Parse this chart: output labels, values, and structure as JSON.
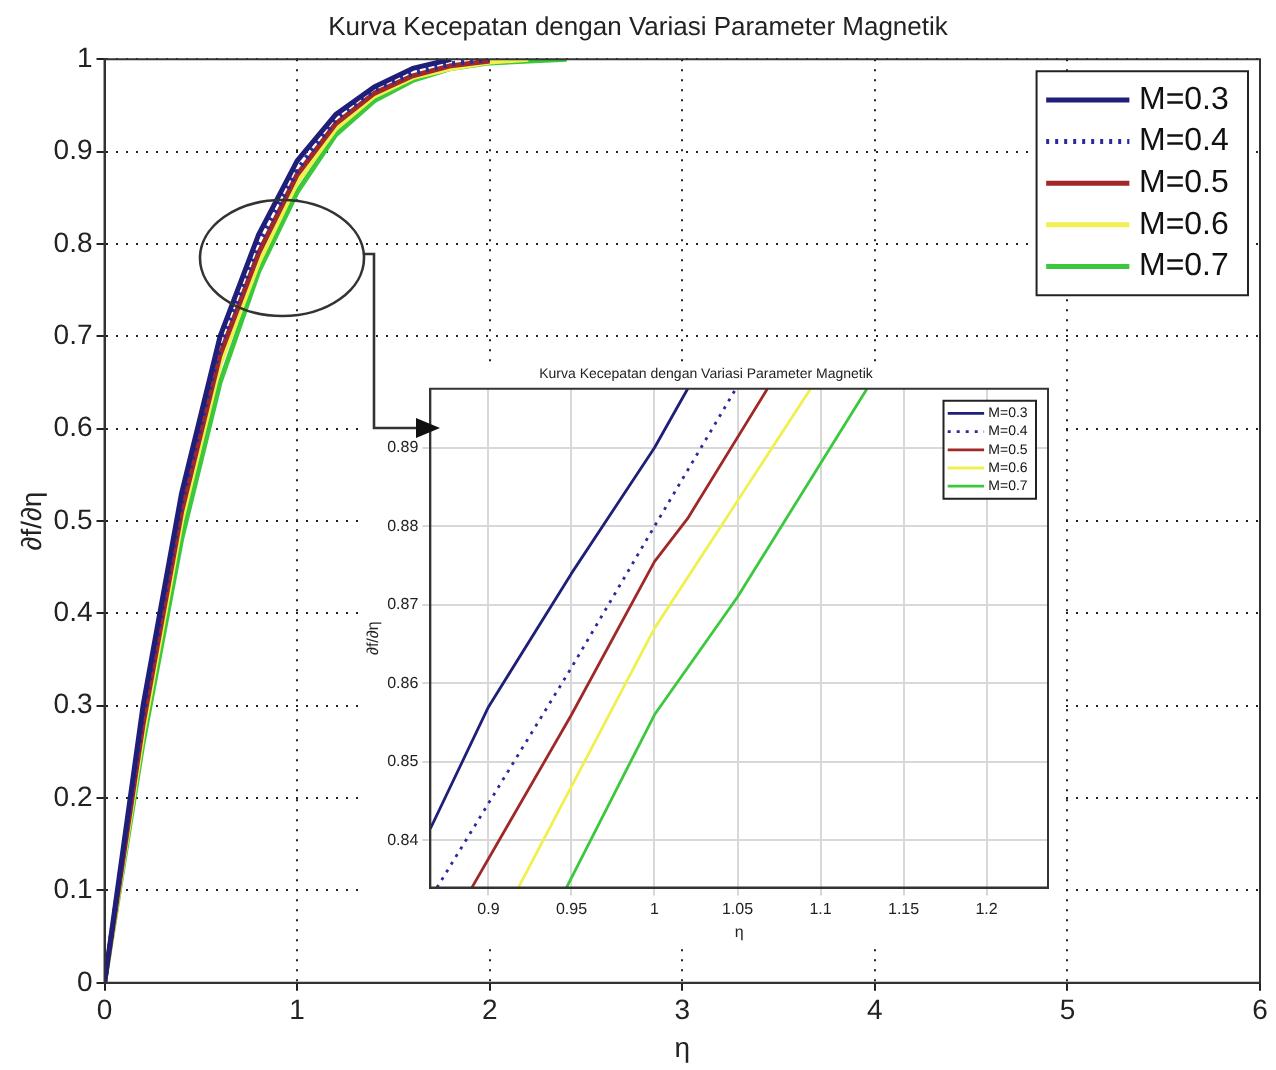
{
  "chart_data": [
    {
      "type": "line",
      "title": "Kurva Kecepatan dengan Variasi Parameter Magnetik",
      "xlabel": "η",
      "ylabel": "∂f/∂η",
      "xlim": [
        0,
        6
      ],
      "ylim": [
        0,
        1
      ],
      "xticks": [
        0,
        1,
        2,
        3,
        4,
        5,
        6
      ],
      "yticks": [
        0,
        0.1,
        0.2,
        0.3,
        0.4,
        0.5,
        0.6,
        0.7,
        0.8,
        0.9,
        1
      ],
      "grid": true,
      "legend": "top right",
      "marker": "none",
      "line_style": "solid",
      "series": [
        {
          "name": "M=0.3",
          "color": "#1f1f7a",
          "x": [
            0,
            0.2,
            0.4,
            0.6,
            0.8,
            1.0,
            1.2,
            1.4,
            1.6,
            1.8
          ],
          "values": [
            0,
            0.3,
            0.53,
            0.7,
            0.81,
            0.89,
            0.94,
            0.97,
            0.99,
            1
          ]
        },
        {
          "name": "M=0.4",
          "color": "#2a2a9a",
          "line_style": "dotted",
          "x": [
            0,
            0.2,
            0.4,
            0.6,
            0.8,
            1.0,
            1.2,
            1.4,
            1.6,
            1.8,
            2.0
          ],
          "values": [
            0,
            0.29,
            0.52,
            0.69,
            0.8,
            0.88,
            0.935,
            0.967,
            0.985,
            0.995,
            1
          ]
        },
        {
          "name": "M=0.5",
          "color": "#a02828",
          "x": [
            0,
            0.2,
            0.4,
            0.6,
            0.8,
            1.0,
            1.2,
            1.4,
            1.6,
            1.8,
            2.0
          ],
          "values": [
            0,
            0.28,
            0.51,
            0.68,
            0.79,
            0.875,
            0.93,
            0.963,
            0.982,
            0.993,
            0.998
          ]
        },
        {
          "name": "M=0.6",
          "color": "#f0f050",
          "x": [
            0,
            0.2,
            0.4,
            0.6,
            0.8,
            1.0,
            1.2,
            1.4,
            1.6,
            1.8,
            2.0,
            2.2
          ],
          "values": [
            0,
            0.27,
            0.5,
            0.67,
            0.78,
            0.867,
            0.925,
            0.96,
            0.98,
            0.99,
            0.997,
            1
          ]
        },
        {
          "name": "M=0.7",
          "color": "#3cc83c",
          "x": [
            0,
            0.2,
            0.4,
            0.6,
            0.8,
            1.0,
            1.2,
            1.4,
            1.6,
            1.8,
            2.0,
            2.4
          ],
          "values": [
            0,
            0.26,
            0.48,
            0.65,
            0.77,
            0.856,
            0.918,
            0.955,
            0.977,
            0.99,
            0.996,
            1
          ]
        }
      ]
    },
    {
      "type": "line",
      "title": "Kurva Kecepatan dengan Variasi Parameter Magnetik",
      "xlabel": "η",
      "ylabel": "∂f/∂η",
      "xlim": [
        0.865,
        1.237
      ],
      "ylim": [
        0.834,
        0.8975
      ],
      "xticks": [
        0.9,
        0.95,
        1,
        1.05,
        1.1,
        1.15,
        1.2
      ],
      "yticks": [
        0.84,
        0.85,
        0.86,
        0.87,
        0.88,
        0.89
      ],
      "grid": true,
      "legend": "top right",
      "marker": "none",
      "line_style": "solid",
      "series": [
        {
          "name": "M=0.3",
          "color": "#1f1f7a",
          "x": [
            0.865,
            0.9,
            0.95,
            1.0,
            1.02
          ],
          "values": [
            0.8415,
            0.857,
            0.874,
            0.89,
            0.8975
          ]
        },
        {
          "name": "M=0.4",
          "color": "#2a2a9a",
          "line_style": "dotted",
          "x": [
            0.869,
            0.95,
            1.0,
            1.049
          ],
          "values": [
            0.834,
            0.862,
            0.88,
            0.8975
          ]
        },
        {
          "name": "M=0.5",
          "color": "#a02828",
          "x": [
            0.89,
            0.95,
            1.0,
            1.02,
            1.068
          ],
          "values": [
            0.834,
            0.856,
            0.8755,
            0.881,
            0.8975
          ]
        },
        {
          "name": "M=0.6",
          "color": "#f0f050",
          "x": [
            0.918,
            1.0,
            1.094
          ],
          "values": [
            0.834,
            0.867,
            0.8975
          ]
        },
        {
          "name": "M=0.7",
          "color": "#3cc83c",
          "x": [
            0.947,
            1.0,
            1.05,
            1.1,
            1.128
          ],
          "values": [
            0.834,
            0.856,
            0.871,
            0.888,
            0.8975
          ]
        }
      ]
    }
  ]
}
